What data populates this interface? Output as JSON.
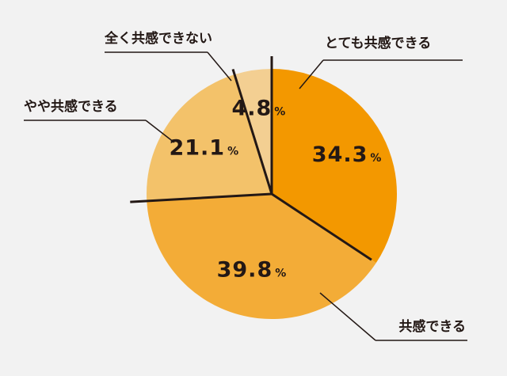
{
  "chart_data": {
    "type": "pie",
    "unit": "%",
    "colors": {
      "divider": "#231815",
      "text": "#231815",
      "background": "#f2f2f2"
    },
    "slices": [
      {
        "label": "とても共感できる",
        "value": 34.3,
        "color": "#f39800"
      },
      {
        "label": "共感できる",
        "value": 39.8,
        "color": "#f3ac37"
      },
      {
        "label": "やや共感できる",
        "value": 21.1,
        "color": "#f3c26a"
      },
      {
        "label": "全く共感できない",
        "value": 4.8,
        "color": "#f3cf92"
      }
    ]
  }
}
